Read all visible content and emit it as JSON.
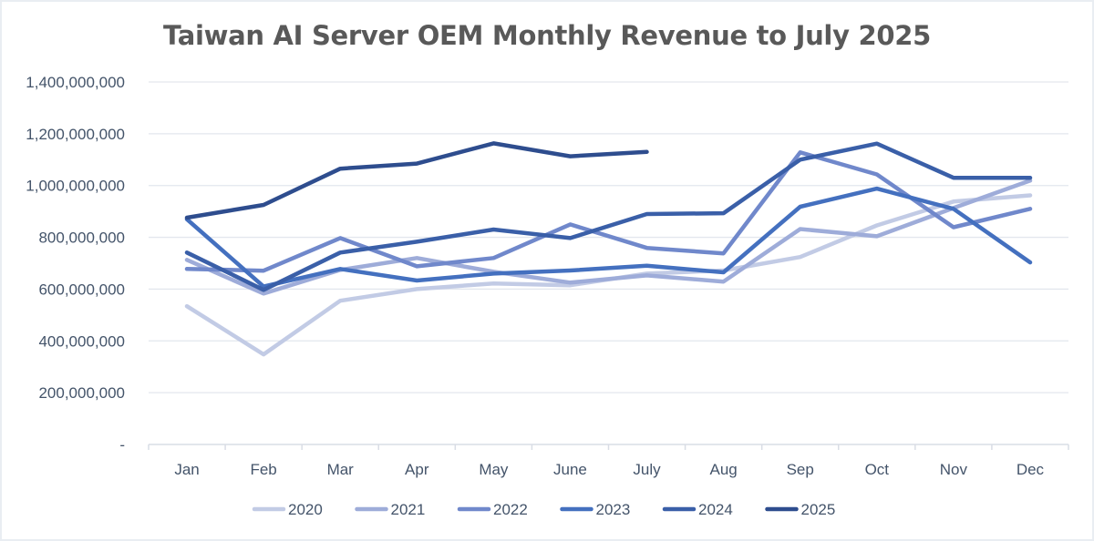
{
  "chart_data": {
    "type": "line",
    "title": "Taiwan AI Server OEM Monthly Revenue to July 2025",
    "xlabel": "",
    "ylabel": "",
    "categories": [
      "Jan",
      "Feb",
      "Mar",
      "Apr",
      "May",
      "June",
      "July",
      "Aug",
      "Sep",
      "Oct",
      "Nov",
      "Dec"
    ],
    "ylim": [
      0,
      1400000000
    ],
    "yticks": [
      0,
      200000000,
      400000000,
      600000000,
      800000000,
      1000000000,
      1200000000,
      1400000000
    ],
    "ytick_labels": [
      "-",
      "200,000,000",
      "400,000,000",
      "600,000,000",
      "800,000,000",
      "1,000,000,000",
      "1,200,000,000",
      "1,400,000,000"
    ],
    "grid": true,
    "legend_position": "bottom",
    "series": [
      {
        "name": "2020",
        "color": "#c2cbe5",
        "values": [
          534000000,
          348000000,
          555000000,
          600000000,
          622000000,
          615000000,
          660000000,
          672000000,
          724000000,
          846000000,
          938000000,
          962000000
        ]
      },
      {
        "name": "2021",
        "color": "#9eacd9",
        "values": [
          713000000,
          583000000,
          674000000,
          720000000,
          667000000,
          625000000,
          653000000,
          629000000,
          832000000,
          804000000,
          913000000,
          1019000000
        ]
      },
      {
        "name": "2022",
        "color": "#7088cb",
        "values": [
          678000000,
          671000000,
          797000000,
          688000000,
          720000000,
          850000000,
          759000000,
          738000000,
          1128000000,
          1043000000,
          839000000,
          910000000
        ]
      },
      {
        "name": "2023",
        "color": "#4470bf",
        "values": [
          870000000,
          610000000,
          678000000,
          633000000,
          660000000,
          672000000,
          690000000,
          665000000,
          918000000,
          988000000,
          910000000,
          703000000
        ]
      },
      {
        "name": "2024",
        "color": "#3a5fa8",
        "values": [
          741000000,
          597000000,
          741000000,
          783000000,
          830000000,
          797000000,
          890000000,
          893000000,
          1100000000,
          1162000000,
          1030000000,
          1030000000
        ]
      },
      {
        "name": "2025",
        "color": "#2e4d8e",
        "values": [
          876000000,
          925000000,
          1065000000,
          1085000000,
          1163000000,
          1113000000,
          1130000000,
          null,
          null,
          null,
          null,
          null
        ]
      }
    ]
  }
}
